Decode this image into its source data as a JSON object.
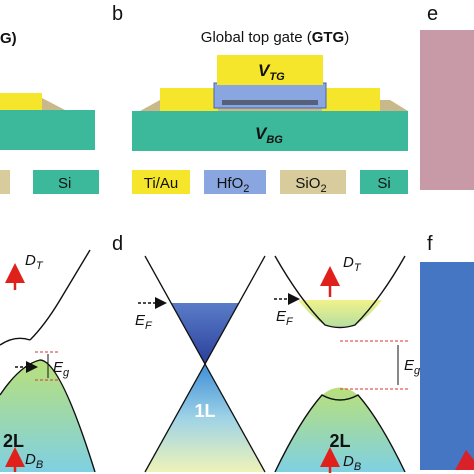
{
  "panels": {
    "b": "b",
    "d": "d",
    "e": "e",
    "f": "f"
  },
  "panel_a": {
    "caption_fragment": "G)",
    "legend_si": "Si",
    "D_T": {
      "main": "D",
      "sub": "T"
    },
    "E_g": {
      "main": "E",
      "sub": "g"
    },
    "label_2L": "2L",
    "D_B": {
      "main": "D",
      "sub": "B"
    }
  },
  "panel_b": {
    "caption_parts": [
      "Global top gate (",
      "GTG",
      ")"
    ],
    "V_TG": {
      "main": "V",
      "sub": "TG"
    },
    "V_BG": {
      "main": "V",
      "sub": "BG"
    },
    "legend": [
      {
        "main": "Ti/Au"
      },
      {
        "main": "HfO",
        "sub": "2"
      },
      {
        "main": "SiO",
        "sub": "2"
      },
      {
        "main": "Si"
      }
    ]
  },
  "panel_d": {
    "E_F_1L": {
      "main": "E",
      "sub": "F"
    },
    "label_1L": "1L",
    "E_F_2L": {
      "main": "E",
      "sub": "F"
    },
    "D_T": {
      "main": "D",
      "sub": "T"
    },
    "E_g": {
      "main": "E",
      "sub": "g"
    },
    "label_2L": "2L",
    "D_B": {
      "main": "D",
      "sub": "B"
    }
  }
}
